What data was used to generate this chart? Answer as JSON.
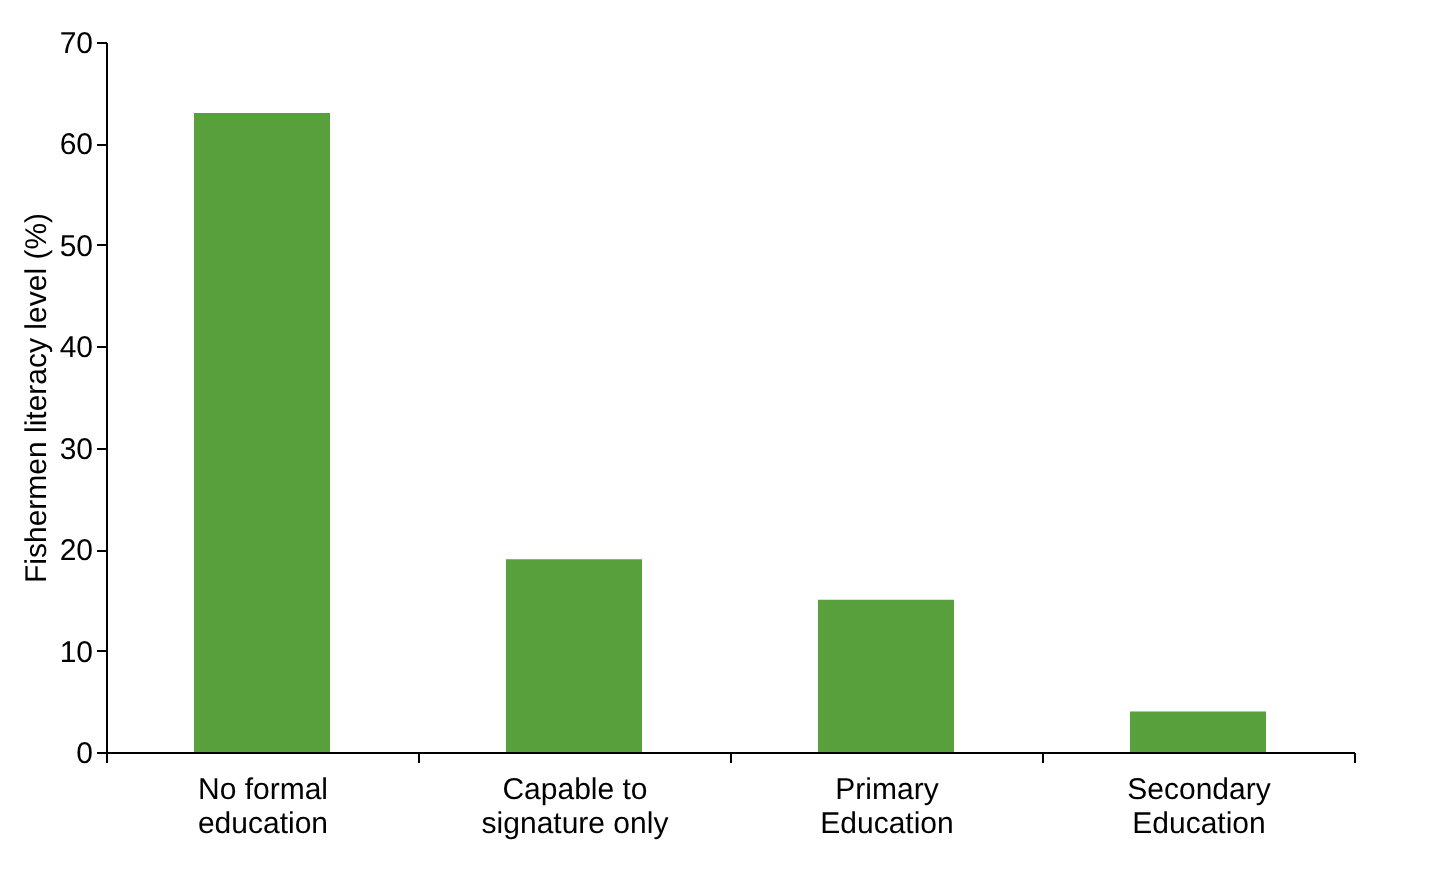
{
  "chart_data": {
    "type": "bar",
    "ylabel": "Fishermen literacy level (%)",
    "categories": [
      "No formal\neducation",
      "Capable to\nsignature only",
      "Primary\nEducation",
      "Secondary\nEducation"
    ],
    "values": [
      63,
      19,
      15,
      4
    ],
    "color": "#57a03c",
    "ylim": [
      0,
      70
    ],
    "yticks": [
      0,
      10,
      20,
      30,
      40,
      50,
      60,
      70
    ],
    "grid": false
  }
}
